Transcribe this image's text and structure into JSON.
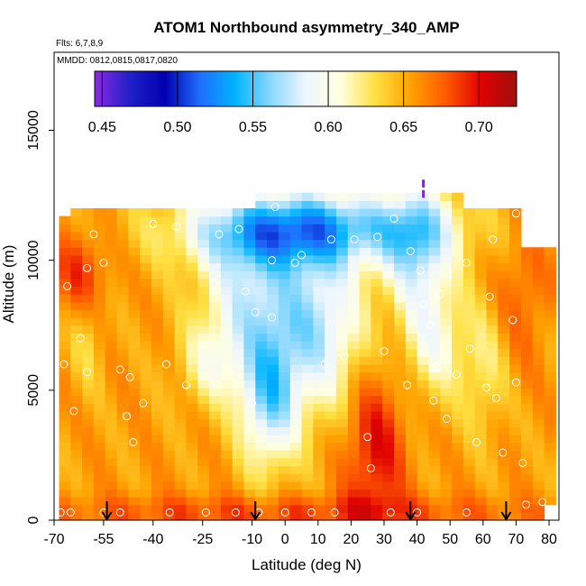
{
  "chart_data": {
    "type": "heatmap",
    "title": "ATOM1 Northbound asymmetry_340_AMP",
    "flights_label": "Flts: 6,7,8,9",
    "mmdd_label": "MMDD: 0812,0815,0817,0820",
    "xlabel": "Latitude (deg N)",
    "ylabel": "Altitude (m)",
    "xlim": [
      -70,
      83
    ],
    "ylim": [
      0,
      18000
    ],
    "x_ticks": [
      -70,
      -55,
      -40,
      -25,
      -10,
      0,
      10,
      20,
      30,
      40,
      50,
      60,
      70,
      80
    ],
    "x_tick_labels": [
      "-70",
      "-55",
      "-40",
      "-25",
      "-10",
      "0",
      "10",
      "20",
      "30",
      "40",
      "50",
      "60",
      "70",
      "80"
    ],
    "y_ticks": [
      0,
      5000,
      10000,
      15000
    ],
    "y_tick_labels": [
      "0",
      "5000",
      "10000",
      "15000"
    ],
    "colorbar": {
      "min": 0.445,
      "max": 0.725,
      "ticks": [
        0.45,
        0.5,
        0.55,
        0.6,
        0.65,
        0.7
      ],
      "tick_labels": [
        "0.45",
        "0.50",
        "0.55",
        "0.60",
        "0.65",
        "0.70"
      ],
      "colors": [
        "#8a2be2",
        "#2020c8",
        "#0000b0",
        "#1e6eff",
        "#00b4ff",
        "#8ad8ff",
        "#eef6ff",
        "#ffffe0",
        "#ffe040",
        "#ffa000",
        "#ff5a00",
        "#e00000",
        "#a01010"
      ]
    },
    "arrow_latitudes": [
      -54,
      -9,
      38,
      67
    ],
    "z_field_note": "asymmetry values 0.45-0.72 on latitude x altitude grid",
    "samples": [
      [
        -68,
        300
      ],
      [
        -64,
        4200
      ],
      [
        -55,
        300
      ],
      [
        -50,
        300
      ],
      [
        -48,
        4000
      ],
      [
        -47,
        5500
      ],
      [
        -46,
        3000
      ],
      [
        -43,
        4500
      ],
      [
        -36,
        6000
      ],
      [
        -24,
        300
      ],
      [
        -8,
        300
      ],
      [
        8,
        300
      ],
      [
        25,
        3200
      ],
      [
        26,
        2000
      ],
      [
        40,
        300
      ],
      [
        45,
        4600
      ],
      [
        49,
        3900
      ],
      [
        52,
        5600
      ],
      [
        56,
        6600
      ],
      [
        62,
        8600
      ],
      [
        69,
        7700
      ],
      [
        70,
        5300
      ],
      [
        72,
        2200
      ],
      [
        73,
        600
      ],
      [
        78,
        700
      ],
      [
        -67,
        6000
      ],
      [
        -66,
        9000
      ],
      [
        -62,
        7000
      ],
      [
        -60,
        9700
      ],
      [
        -58,
        11000
      ],
      [
        -55,
        9900
      ],
      [
        -40,
        11400
      ],
      [
        -33,
        11300
      ],
      [
        -20,
        11000
      ],
      [
        -14,
        11200
      ],
      [
        -3,
        12050
      ],
      [
        5,
        10200
      ],
      [
        14,
        10800
      ],
      [
        21,
        10800
      ],
      [
        28,
        10900
      ],
      [
        33,
        11600
      ],
      [
        38,
        10350
      ],
      [
        41,
        9600
      ],
      [
        47,
        8700
      ],
      [
        55,
        9900
      ],
      [
        63,
        10800
      ],
      [
        70,
        11800
      ],
      [
        -50,
        5800
      ],
      [
        -30,
        5200
      ],
      [
        -10,
        4500
      ],
      [
        -4,
        7800
      ],
      [
        -9,
        8000
      ],
      [
        -12,
        8800
      ],
      [
        -4,
        10000
      ],
      [
        3,
        9900
      ],
      [
        12,
        6000
      ],
      [
        18,
        6300
      ],
      [
        30,
        6500
      ],
      [
        37,
        5200
      ],
      [
        42,
        8300
      ],
      [
        44,
        7500
      ],
      [
        46,
        5900
      ],
      [
        58,
        3000
      ],
      [
        66,
        2600
      ],
      [
        64,
        4700
      ],
      [
        -60,
        5700
      ],
      [
        -65,
        300
      ],
      [
        -35,
        300
      ],
      [
        -15,
        300
      ],
      [
        0,
        300
      ],
      [
        15,
        300
      ],
      [
        32,
        300
      ],
      [
        55,
        300
      ],
      [
        61,
        5100
      ]
    ]
  }
}
